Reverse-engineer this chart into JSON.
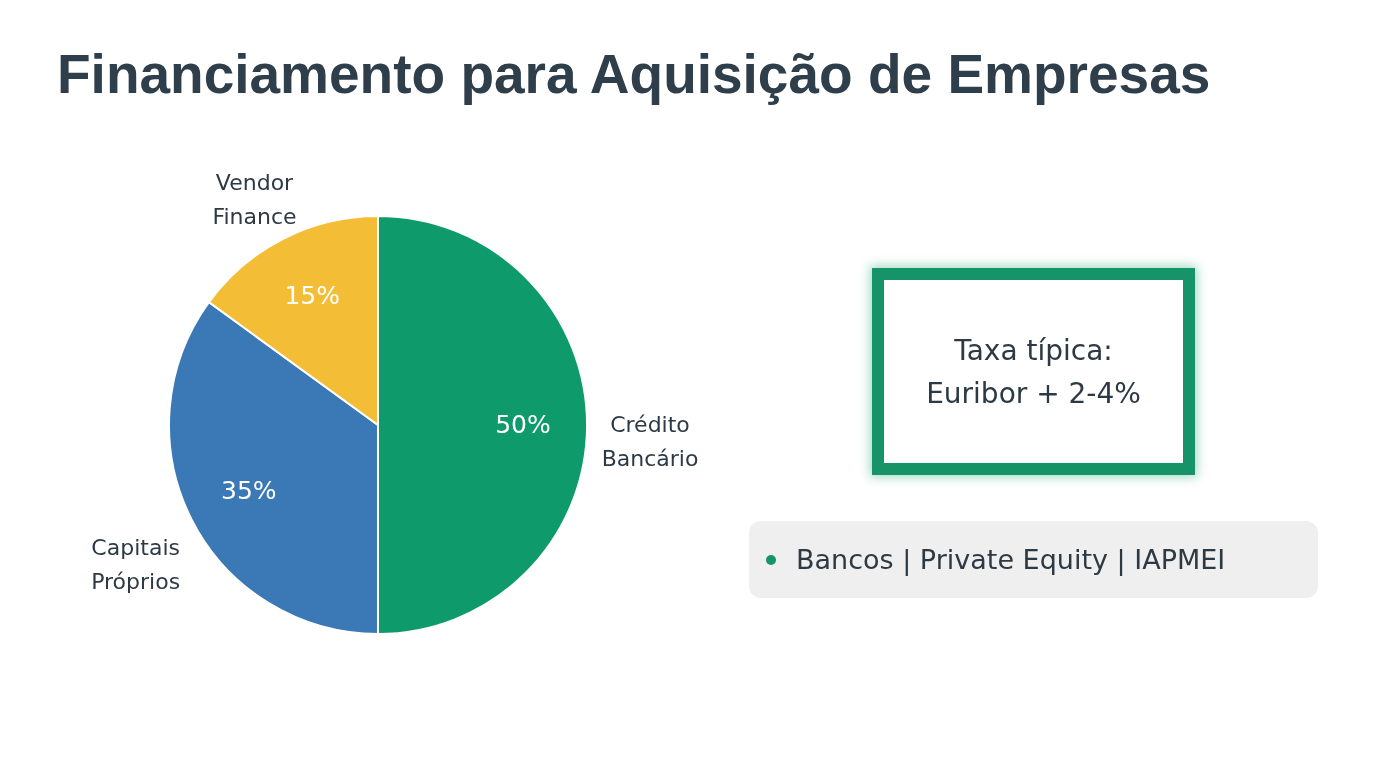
{
  "chart_data": {
    "type": "pie",
    "title": "Financiamento para Aquisição de Empresas",
    "categories": [
      "Crédito Bancário",
      "Capitais Próprios",
      "Vendor Finance"
    ],
    "values": [
      50,
      35,
      15
    ],
    "colors": [
      "#0f9a6b",
      "#3a79b6",
      "#f4bd36"
    ],
    "value_labels": [
      "50%",
      "35%",
      "15%"
    ],
    "annotations": [
      "Taxa típica: Euribor + 2-4%",
      "Bancos | Private Equity | IAPMEI"
    ]
  }
}
